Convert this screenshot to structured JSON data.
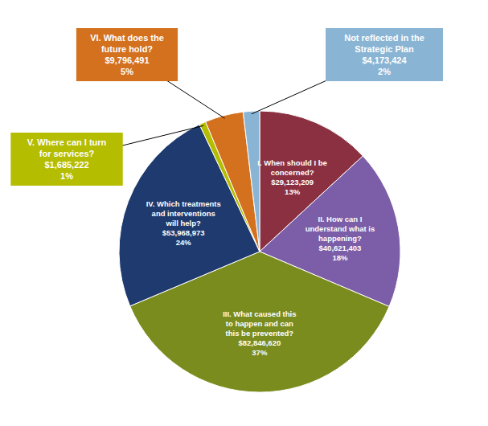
{
  "chart_data": {
    "type": "pie",
    "categories": [
      "I. When should I be\nconcerned?\n$29,123,209\n13%",
      "II. How can I\nunderstand what is\nhappening?\n$40,621,403\n18%",
      "III. What caused this\nto happen and can\nthis be prevented?\n$82,846,620\n37%",
      "IV. Which treatments\nand interventions\nwill help?\n$53,968,973\n24%",
      "V. Where can I turn\nfor services?\n$1,685,222\n1%",
      "VI. What does the\nfuture hold?\n$9,796,491\n5%",
      "Not reflected in the\nStrategic Plan\n$4,173,424\n2%"
    ],
    "values": [
      29123209,
      40621403,
      82846620,
      53968973,
      1685222,
      9796491,
      4173424
    ],
    "colors": [
      "#8B3040",
      "#7B5EA7",
      "#7B8C1E",
      "#1E3A6E",
      "#B5BD00",
      "#D4711E",
      "#8AB4D4"
    ]
  }
}
